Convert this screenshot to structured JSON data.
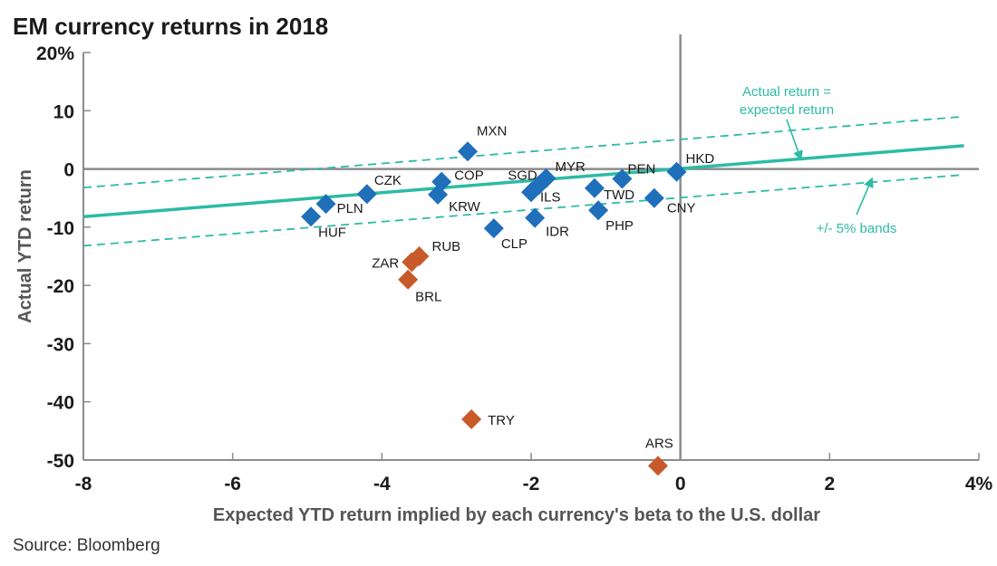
{
  "chart_data": {
    "type": "scatter",
    "title": "EM currency returns in 2018",
    "xlabel": "Expected YTD return implied by each currency's beta to the U.S. dollar",
    "ylabel": "Actual YTD return",
    "source": "Source: Bloomberg",
    "xlim": [
      -8,
      4
    ],
    "ylim": [
      -50,
      20
    ],
    "x_ticks": [
      {
        "value": -8,
        "label": "-8"
      },
      {
        "value": -6,
        "label": "-6"
      },
      {
        "value": -4,
        "label": "-4"
      },
      {
        "value": -2,
        "label": "-2"
      },
      {
        "value": 0,
        "label": "0"
      },
      {
        "value": 2,
        "label": "2"
      },
      {
        "value": 4,
        "label": "4%"
      }
    ],
    "y_ticks": [
      {
        "value": 20,
        "label": "20%"
      },
      {
        "value": 10,
        "label": "10"
      },
      {
        "value": 0,
        "label": "0"
      },
      {
        "value": -10,
        "label": "-10"
      },
      {
        "value": -20,
        "label": "-20"
      },
      {
        "value": -30,
        "label": "-30"
      },
      {
        "value": -40,
        "label": "-40"
      },
      {
        "value": -50,
        "label": "-50"
      }
    ],
    "grid": false,
    "colors": {
      "blue": "#1f6fba",
      "orange": "#c85a2a",
      "line": "#2dbba4"
    },
    "points": [
      {
        "label": "MXN",
        "x": -2.85,
        "y": 3.0,
        "color": "blue"
      },
      {
        "label": "HKD",
        "x": -0.05,
        "y": -0.5,
        "color": "blue"
      },
      {
        "label": "PEN",
        "x": -0.78,
        "y": -1.7,
        "color": "blue"
      },
      {
        "label": "MYR",
        "x": -1.8,
        "y": -1.6,
        "color": "blue"
      },
      {
        "label": "SGD",
        "x": -1.9,
        "y": -2.8,
        "color": "blue"
      },
      {
        "label": "COP",
        "x": -3.2,
        "y": -2.2,
        "color": "blue"
      },
      {
        "label": "CZK",
        "x": -4.2,
        "y": -4.3,
        "color": "blue"
      },
      {
        "label": "KRW",
        "x": -3.25,
        "y": -4.4,
        "color": "blue"
      },
      {
        "label": "ILS",
        "x": -2.0,
        "y": -4.0,
        "color": "blue"
      },
      {
        "label": "TWD",
        "x": -1.15,
        "y": -3.3,
        "color": "blue"
      },
      {
        "label": "CNY",
        "x": -0.35,
        "y": -5.0,
        "color": "blue"
      },
      {
        "label": "PLN",
        "x": -4.75,
        "y": -6.0,
        "color": "blue"
      },
      {
        "label": "HUF",
        "x": -4.95,
        "y": -8.2,
        "color": "blue"
      },
      {
        "label": "PHP",
        "x": -1.1,
        "y": -7.1,
        "color": "blue"
      },
      {
        "label": "IDR",
        "x": -1.95,
        "y": -8.4,
        "color": "blue"
      },
      {
        "label": "CLP",
        "x": -2.5,
        "y": -10.2,
        "color": "blue"
      },
      {
        "label": "RUB",
        "x": -3.5,
        "y": -15.0,
        "color": "orange"
      },
      {
        "label": "ZAR",
        "x": -3.6,
        "y": -16.0,
        "color": "orange"
      },
      {
        "label": "BRL",
        "x": -3.65,
        "y": -19.0,
        "color": "orange"
      },
      {
        "label": "TRY",
        "x": -2.8,
        "y": -43.0,
        "color": "orange"
      },
      {
        "label": "ARS",
        "x": -0.3,
        "y": -51.0,
        "color": "orange"
      }
    ],
    "reference_lines": [
      {
        "name": "actual-return-line",
        "x": [
          -8,
          3.8
        ],
        "y": [
          -8.2,
          4.0
        ],
        "style": "solid"
      },
      {
        "name": "upper-band",
        "x": [
          -8,
          3.8
        ],
        "y": [
          -3.2,
          9.0
        ],
        "style": "dashed"
      },
      {
        "name": "lower-band",
        "x": [
          -8,
          3.8
        ],
        "y": [
          -13.2,
          -1.0
        ],
        "style": "dashed"
      }
    ],
    "annotations": [
      {
        "text_lines": [
          "Actual return =",
          "expected return"
        ],
        "arrow_to": {
          "x": 1.6,
          "y": 2.2
        }
      },
      {
        "text_lines": [
          "+/- 5% bands"
        ],
        "arrow_to": {
          "x": 2.55,
          "y": -2.2
        }
      }
    ]
  }
}
